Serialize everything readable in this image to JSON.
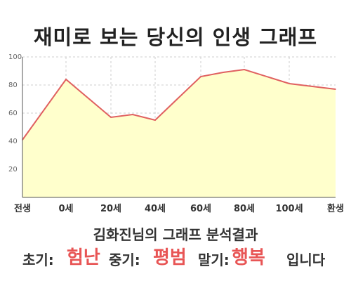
{
  "header": {
    "title": "재미로 보는 당신의 인생 그래프"
  },
  "chart_data": {
    "type": "area",
    "x_labels": [
      "전생",
      "0세",
      "20세",
      "40세",
      "60세",
      "80세",
      "100세",
      "환생"
    ],
    "y_ticks": [
      20,
      40,
      60,
      80,
      100
    ],
    "ylim": [
      0,
      100
    ],
    "points": [
      {
        "x": "전생",
        "y": 41
      },
      {
        "x": "0세",
        "y": 84
      },
      {
        "x": "20세",
        "y": 57
      },
      {
        "x": "30세",
        "y": 59
      },
      {
        "x": "40세",
        "y": 55
      },
      {
        "x": "60세",
        "y": 86
      },
      {
        "x": "70세",
        "y": 89
      },
      {
        "x": "80세",
        "y": 91
      },
      {
        "x": "100세",
        "y": 81
      },
      {
        "x": "환생",
        "y": 77
      }
    ],
    "grid": true,
    "fill_color": "#ffffcc",
    "line_color": "#e06060"
  },
  "result": {
    "subtitle": "김화진님의 그래프 분석결과",
    "early_label": "초기:",
    "early_value": "험난",
    "mid_label": "중기:",
    "mid_value": "평범",
    "late_label": "말기:",
    "late_value": "행복",
    "suffix": "입니다"
  }
}
